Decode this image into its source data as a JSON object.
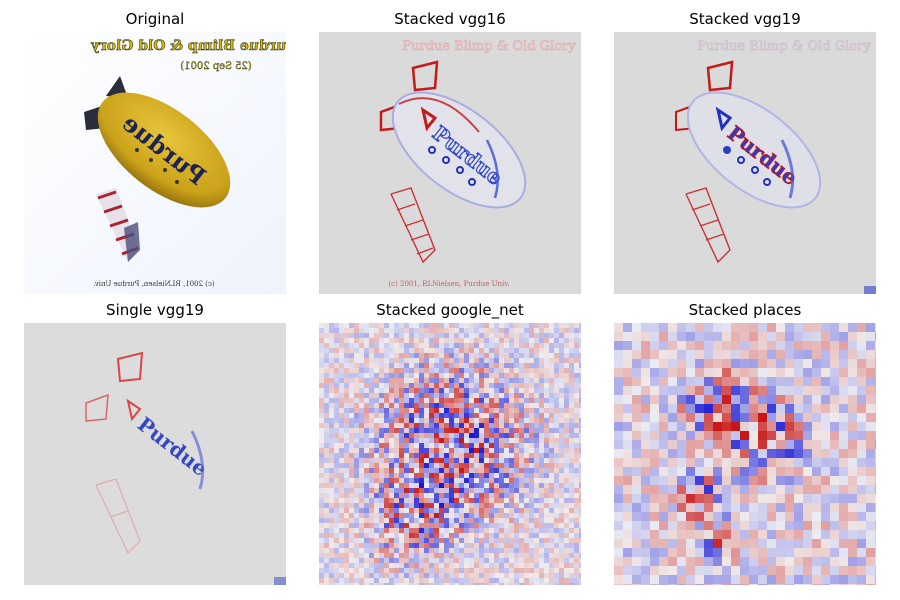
{
  "figure": {
    "panels": [
      {
        "title": "Original",
        "image": "original-blimp-photo",
        "overlay_text": [
          "Purdue Blimp & Old Glory",
          "(25 Sep 2001)",
          "Purdue",
          "(c) 2001, RLNielsen, Purdue Univ."
        ]
      },
      {
        "title": "Stacked vgg16",
        "image": "saliency-heatmap-stacked-vgg16"
      },
      {
        "title": "Stacked vgg19",
        "image": "saliency-heatmap-stacked-vgg19"
      },
      {
        "title": "Single vgg19",
        "image": "saliency-heatmap-single-vgg19"
      },
      {
        "title": "Stacked google_net",
        "image": "saliency-heatmap-stacked-google-net"
      },
      {
        "title": "Stacked places",
        "image": "saliency-heatmap-stacked-places"
      }
    ],
    "colors": {
      "heatmap_neutral": "#dadada",
      "heatmap_positive": "#d01818",
      "heatmap_negative": "#1a2fd0",
      "blimp_body": "#d4ad1e",
      "fin": "#2a2e3c",
      "sky": "#f4f8fe"
    }
  }
}
